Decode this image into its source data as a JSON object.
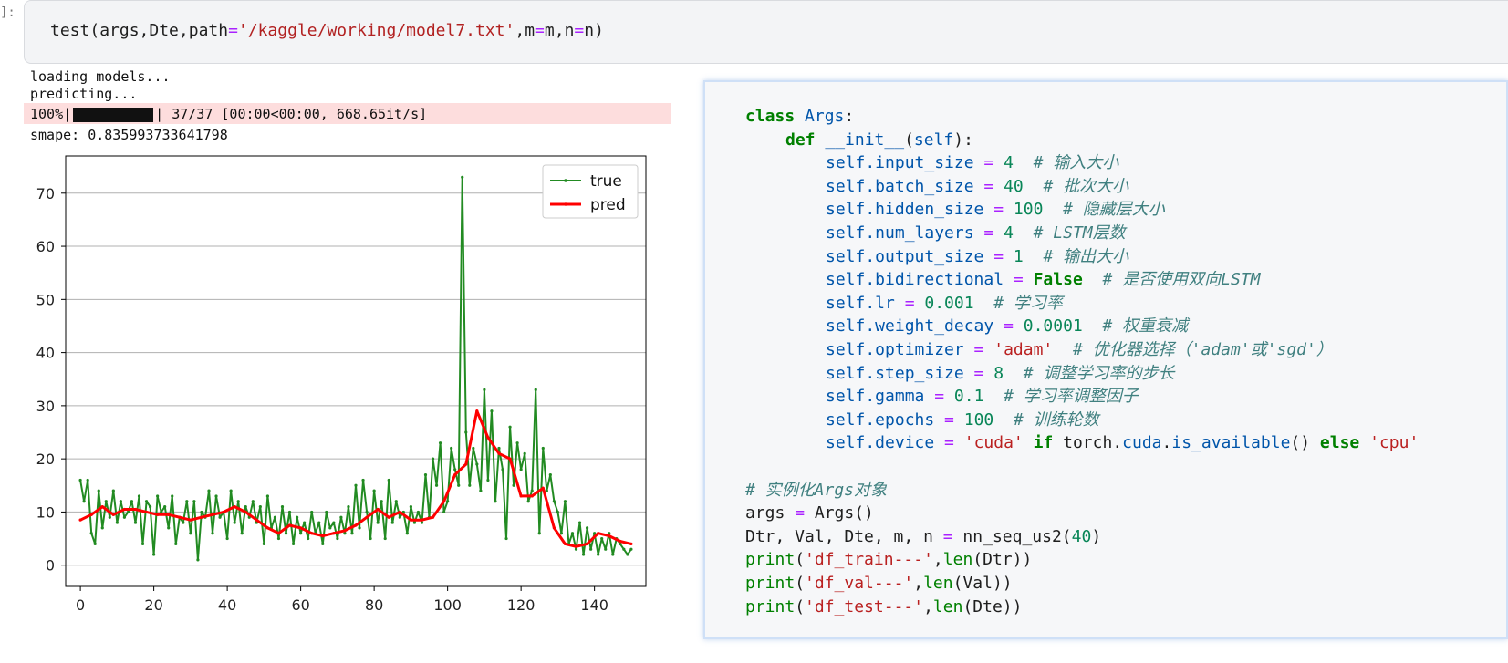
{
  "cell": {
    "prompt": "]:",
    "code": {
      "fn": "test",
      "args_before": "(args,Dte,path",
      "eq1": "=",
      "path_str": "'/kaggle/working/model7.txt'",
      "comma_m": ",m",
      "eq2": "=",
      "m_val": "m,n",
      "eq3": "=",
      "tail": "n)"
    }
  },
  "output": {
    "line1": "loading models...",
    "line2": "predicting...",
    "progress": {
      "percent_text": "100%|",
      "fraction": 1.0,
      "suffix": "| 37/37 [00:00<00:00, 668.65it/s]"
    },
    "smape": "smape: 0.835993733641798"
  },
  "chart_data": {
    "type": "line",
    "xlim": [
      -4,
      154
    ],
    "ylim": [
      -4,
      77
    ],
    "xticks": [
      0,
      20,
      40,
      60,
      80,
      100,
      120,
      140
    ],
    "yticks": [
      0,
      10,
      20,
      30,
      40,
      50,
      60,
      70
    ],
    "grid": "horizontal",
    "legend": "top-right",
    "series": [
      {
        "name": "true",
        "color": "#228b22",
        "x": [
          0,
          1,
          2,
          3,
          4,
          5,
          6,
          7,
          8,
          9,
          10,
          11,
          12,
          13,
          14,
          15,
          16,
          17,
          18,
          19,
          20,
          21,
          22,
          23,
          24,
          25,
          26,
          27,
          28,
          29,
          30,
          31,
          32,
          33,
          34,
          35,
          36,
          37,
          38,
          39,
          40,
          41,
          42,
          43,
          44,
          45,
          46,
          47,
          48,
          49,
          50,
          51,
          52,
          53,
          54,
          55,
          56,
          57,
          58,
          59,
          60,
          61,
          62,
          63,
          64,
          65,
          66,
          67,
          68,
          69,
          70,
          71,
          72,
          73,
          74,
          75,
          76,
          77,
          78,
          79,
          80,
          81,
          82,
          83,
          84,
          85,
          86,
          87,
          88,
          89,
          90,
          91,
          92,
          93,
          94,
          95,
          96,
          97,
          98,
          99,
          100,
          101,
          102,
          103,
          104,
          105,
          106,
          107,
          108,
          109,
          110,
          111,
          112,
          113,
          114,
          115,
          116,
          117,
          118,
          119,
          120,
          121,
          122,
          123,
          124,
          125,
          126,
          127,
          128,
          129,
          130,
          131,
          132,
          133,
          134,
          135,
          136,
          137,
          138,
          139,
          140,
          141,
          142,
          143,
          144,
          145,
          146,
          147,
          148,
          149,
          150
        ],
        "y": [
          16,
          12,
          16,
          6,
          4,
          14,
          7,
          12,
          9,
          14,
          8,
          12,
          9,
          10,
          12,
          8,
          13,
          4,
          12,
          11,
          2,
          13,
          10,
          11,
          7,
          13,
          4,
          9,
          8,
          12,
          6,
          12,
          1,
          10,
          9,
          14,
          6,
          13,
          9,
          10,
          5,
          14,
          8,
          12,
          6,
          11,
          9,
          12,
          8,
          11,
          4,
          13,
          7,
          9,
          5,
          11,
          6,
          10,
          4,
          9,
          6,
          8,
          5,
          10,
          6,
          8,
          4,
          10,
          7,
          8,
          5,
          9,
          6,
          11,
          6,
          15,
          7,
          16,
          10,
          5,
          14,
          8,
          12,
          5,
          16,
          8,
          12,
          9,
          10,
          6,
          11,
          8,
          10,
          8,
          17,
          9,
          20,
          15,
          23,
          10,
          12,
          22,
          18,
          15,
          73,
          25,
          15,
          22,
          19,
          14,
          33,
          16,
          29,
          12,
          22,
          18,
          5,
          26,
          15,
          23,
          18,
          21,
          12,
          14,
          33,
          6,
          22,
          14,
          17,
          12,
          10,
          6,
          12,
          4,
          6,
          3,
          8,
          2,
          7,
          3,
          6,
          2,
          5,
          3,
          6,
          2,
          5,
          4,
          3,
          2,
          3
        ]
      },
      {
        "name": "pred",
        "color": "#ff0000",
        "x": [
          0,
          3,
          6,
          9,
          12,
          15,
          18,
          21,
          24,
          27,
          30,
          33,
          36,
          39,
          42,
          45,
          48,
          51,
          54,
          57,
          60,
          63,
          66,
          69,
          72,
          75,
          78,
          81,
          84,
          87,
          90,
          93,
          96,
          99,
          102,
          105,
          108,
          111,
          114,
          117,
          120,
          123,
          126,
          129,
          132,
          135,
          138,
          141,
          144,
          147,
          150
        ],
        "y": [
          8.5,
          9.5,
          11,
          9.5,
          10.5,
          10.5,
          10,
          9.5,
          9.5,
          9,
          8.5,
          9,
          9.5,
          10,
          11,
          10,
          8.5,
          7,
          6,
          7.5,
          7,
          6,
          5.5,
          6,
          6.5,
          7.5,
          9,
          10.5,
          9,
          10,
          8.5,
          8.5,
          9,
          12,
          17,
          19,
          29,
          24,
          21,
          20,
          13,
          13,
          14.5,
          7,
          4,
          3.5,
          4,
          6,
          5.5,
          4.5,
          4
        ]
      }
    ]
  }
}
